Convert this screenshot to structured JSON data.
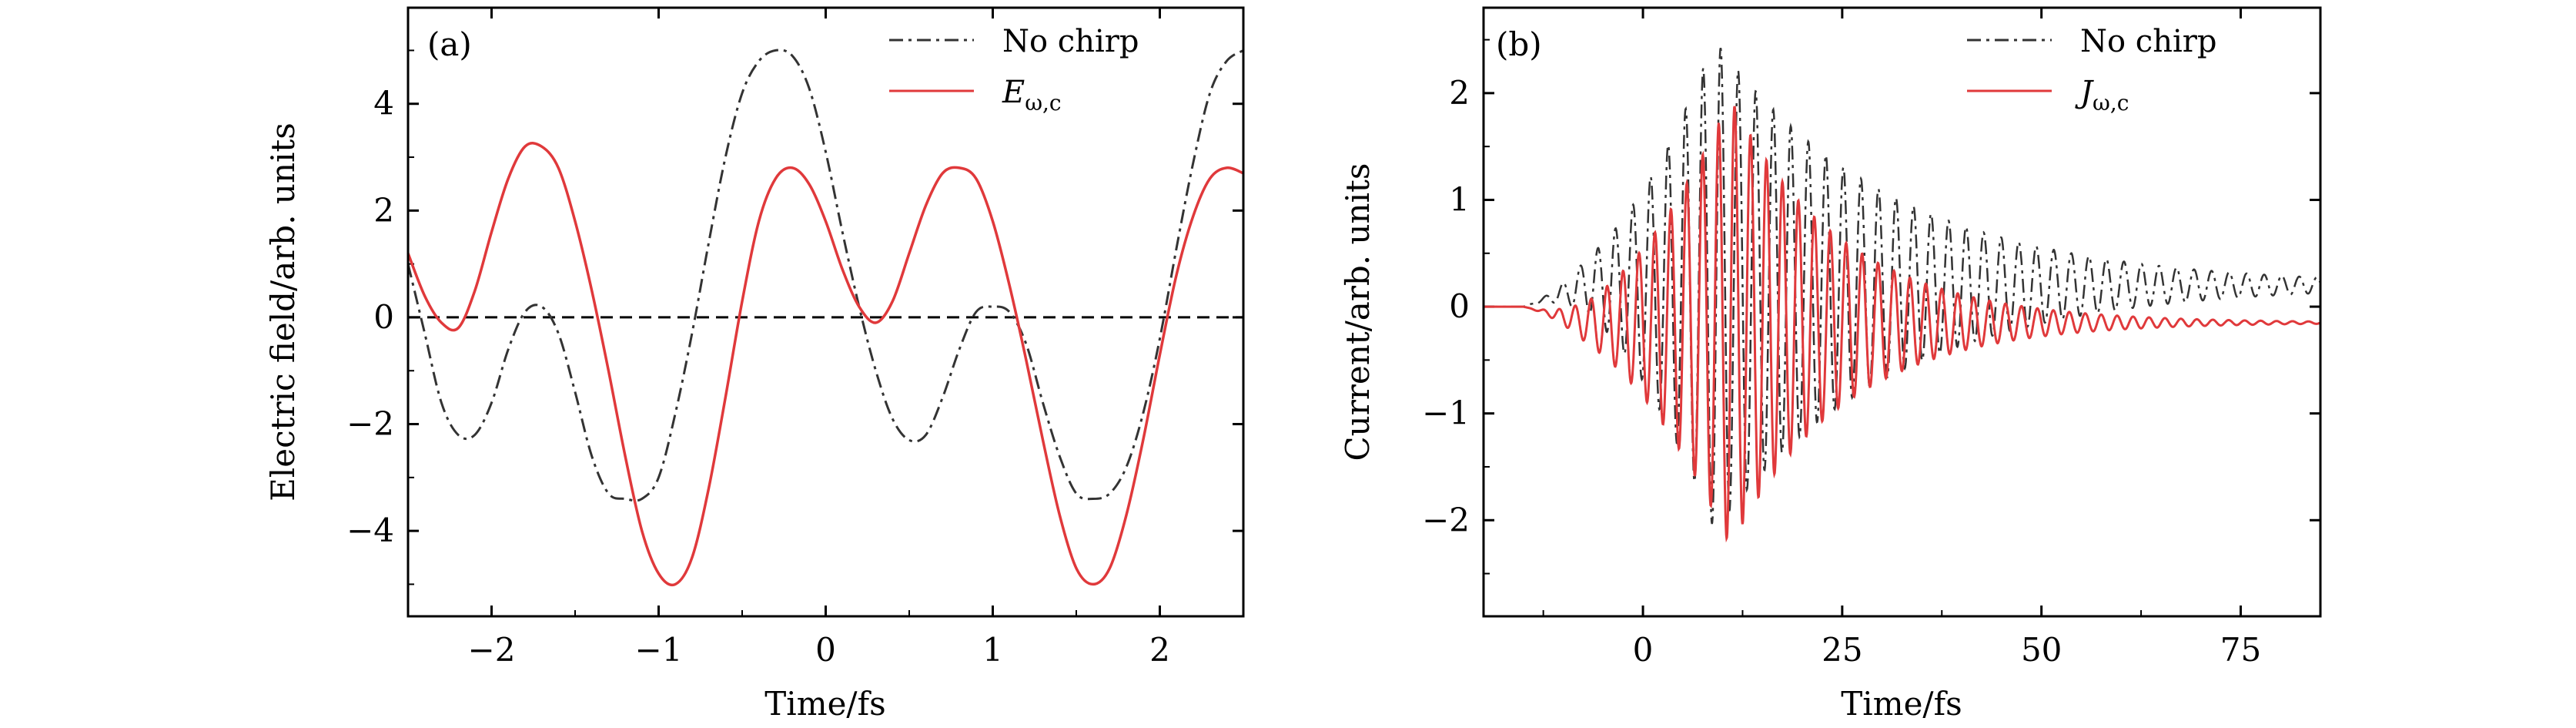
{
  "chart_data": [
    {
      "panel": "(a)",
      "type": "line",
      "xlabel": "Time/fs",
      "ylabel": "Electric field/arb. units",
      "xlim": [
        -2.5,
        2.5
      ],
      "ylim": [
        -5.6,
        5.8
      ],
      "xticks": [
        -2,
        -1,
        0,
        1,
        2
      ],
      "xtick_labels": [
        "−2",
        "−1",
        "0",
        "1",
        "2"
      ],
      "yticks": [
        -4,
        -2,
        0,
        2,
        4
      ],
      "ytick_labels": [
        "−4",
        "−2",
        "0",
        "2",
        "4"
      ],
      "legend_position": "top-right",
      "reference_line": {
        "y": 0,
        "style": "dashed",
        "color": "#000000"
      },
      "series": [
        {
          "name": "No chirp",
          "legend_label": "No chirp",
          "style": "dashdot",
          "color": "#333333",
          "x": [
            -2.5,
            -2.4,
            -2.3,
            -2.2,
            -2.1,
            -2.0,
            -1.9,
            -1.8,
            -1.7,
            -1.6,
            -1.5,
            -1.4,
            -1.3,
            -1.2,
            -1.1,
            -1.0,
            -0.9,
            -0.8,
            -0.7,
            -0.6,
            -0.5,
            -0.4,
            -0.3,
            -0.2,
            -0.1,
            0.0,
            0.1,
            0.2,
            0.3,
            0.4,
            0.5,
            0.6,
            0.7,
            0.8,
            0.9,
            1.0,
            1.1,
            1.2,
            1.3,
            1.4,
            1.5,
            1.6,
            1.7,
            1.8,
            1.9,
            2.0,
            2.1,
            2.2,
            2.3,
            2.4,
            2.5
          ],
          "y": [
            1.0,
            -0.3,
            -1.6,
            -2.2,
            -2.2,
            -1.6,
            -0.6,
            0.1,
            0.2,
            -0.3,
            -1.4,
            -2.6,
            -3.3,
            -3.4,
            -3.4,
            -3.0,
            -1.8,
            -0.3,
            1.4,
            3.0,
            4.2,
            4.8,
            5.0,
            4.9,
            4.3,
            3.1,
            1.6,
            0.2,
            -1.0,
            -1.9,
            -2.3,
            -2.2,
            -1.5,
            -0.6,
            0.1,
            0.2,
            0.1,
            -0.5,
            -1.6,
            -2.6,
            -3.3,
            -3.4,
            -3.3,
            -2.8,
            -1.8,
            -0.4,
            1.3,
            2.9,
            4.2,
            4.8,
            5.0
          ]
        },
        {
          "name": "E_{ω,c}",
          "legend_label": "E",
          "legend_subscript": "ω,c",
          "style": "solid",
          "color": "#e0393b",
          "x": [
            -2.5,
            -2.4,
            -2.3,
            -2.2,
            -2.1,
            -2.0,
            -1.9,
            -1.8,
            -1.7,
            -1.6,
            -1.5,
            -1.4,
            -1.3,
            -1.2,
            -1.1,
            -1.0,
            -0.9,
            -0.8,
            -0.7,
            -0.6,
            -0.5,
            -0.4,
            -0.3,
            -0.2,
            -0.1,
            0.0,
            0.1,
            0.2,
            0.3,
            0.4,
            0.5,
            0.6,
            0.7,
            0.8,
            0.9,
            1.0,
            1.1,
            1.2,
            1.3,
            1.4,
            1.5,
            1.6,
            1.7,
            1.8,
            1.9,
            2.0,
            2.1,
            2.2,
            2.3,
            2.4,
            2.5
          ],
          "y": [
            1.2,
            0.4,
            -0.1,
            -0.2,
            0.5,
            1.6,
            2.6,
            3.2,
            3.2,
            2.8,
            1.8,
            0.5,
            -1.0,
            -2.6,
            -4.0,
            -4.8,
            -5.0,
            -4.5,
            -3.2,
            -1.5,
            0.3,
            1.8,
            2.6,
            2.8,
            2.5,
            1.8,
            0.9,
            0.2,
            -0.1,
            0.3,
            1.2,
            2.1,
            2.7,
            2.8,
            2.6,
            1.8,
            0.6,
            -0.8,
            -2.3,
            -3.7,
            -4.7,
            -5.0,
            -4.7,
            -3.7,
            -2.3,
            -0.7,
            0.8,
            1.9,
            2.6,
            2.8,
            2.7
          ]
        }
      ]
    },
    {
      "panel": "(b)",
      "type": "line",
      "xlabel": "Time/fs",
      "ylabel": "Current/arb. units",
      "xlim": [
        -20,
        85
      ],
      "ylim": [
        -2.9,
        2.8
      ],
      "xticks": [
        0,
        25,
        50,
        75
      ],
      "xtick_labels": [
        "0",
        "25",
        "50",
        "75"
      ],
      "yticks": [
        -2,
        -1,
        0,
        1,
        2
      ],
      "ytick_labels": [
        "−2",
        "−1",
        "0",
        "1",
        "2"
      ],
      "legend_position": "top-right",
      "series": [
        {
          "name": "No chirp",
          "legend_label": "No chirp",
          "style": "dashdot",
          "color": "#333333",
          "signal": {
            "t_start": -20,
            "t_end": 85,
            "onset": -15,
            "rise_end": 9,
            "peak_amplitude": 2.3,
            "decay_constant": 22,
            "period": 2.2,
            "baseline_offset": 0.2
          }
        },
        {
          "name": "J_{ω,c}",
          "legend_label": "J",
          "legend_subscript": "ω,c",
          "style": "solid",
          "color": "#e0393b",
          "signal": {
            "t_start": -20,
            "t_end": 85,
            "onset": -15,
            "rise_end": 11,
            "peak_amplitude": 2.1,
            "decay_constant": 14,
            "period": 2.0,
            "baseline_offset": -0.15
          }
        }
      ]
    }
  ]
}
